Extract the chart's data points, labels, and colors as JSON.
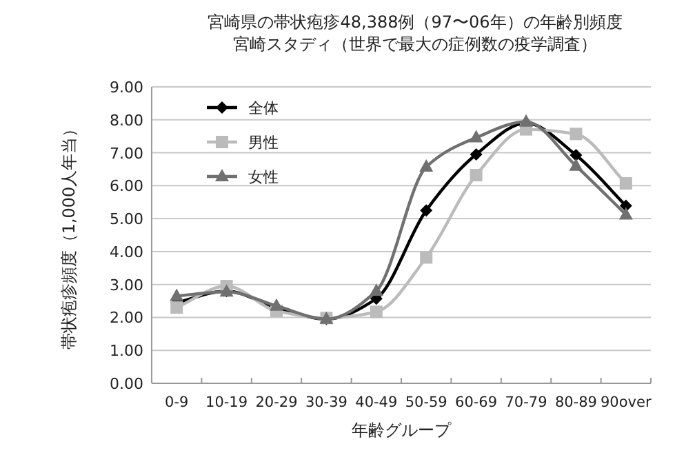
{
  "chart_data": {
    "type": "line",
    "title": "宮崎県の帯状疱疹48,388例（97〜06年）の年齢別頻度",
    "subtitle": "宮崎スタディ（世界で最大の症例数の疫学調査）",
    "xlabel": "年齢グループ",
    "ylabel": "帯状疱疹頻度（1,000人年当）",
    "categories": [
      "0-9",
      "10-19",
      "20-29",
      "30-39",
      "40-49",
      "50-59",
      "60-69",
      "70-79",
      "80-89",
      "90over"
    ],
    "series": [
      {
        "name": "全体",
        "color": "#000000",
        "marker": "diamond",
        "values": [
          2.45,
          2.8,
          2.3,
          1.95,
          2.57,
          5.25,
          6.95,
          7.9,
          6.93,
          5.39
        ]
      },
      {
        "name": "男性",
        "color": "#bbbbbb",
        "marker": "square",
        "values": [
          2.3,
          2.95,
          2.2,
          1.98,
          2.17,
          3.82,
          6.32,
          7.71,
          7.57,
          6.07
        ]
      },
      {
        "name": "女性",
        "color": "#707070",
        "marker": "triangle",
        "values": [
          2.65,
          2.78,
          2.35,
          1.95,
          2.8,
          6.57,
          7.46,
          7.94,
          6.6,
          5.12
        ]
      }
    ],
    "ylim": [
      0,
      9
    ],
    "yticks": [
      {
        "value": 0,
        "label": "0.00"
      },
      {
        "value": 1,
        "label": "1.00"
      },
      {
        "value": 2,
        "label": "2.00"
      },
      {
        "value": 3,
        "label": "3.00"
      },
      {
        "value": 4,
        "label": "4.00"
      },
      {
        "value": 5,
        "label": "5.00"
      },
      {
        "value": 6,
        "label": "6.00"
      },
      {
        "value": 7,
        "label": "7.00"
      },
      {
        "value": 8,
        "label": "8.00"
      },
      {
        "value": 9,
        "label": "9.00"
      }
    ],
    "grid": "y",
    "legend": "top left",
    "line_style": "solid"
  }
}
